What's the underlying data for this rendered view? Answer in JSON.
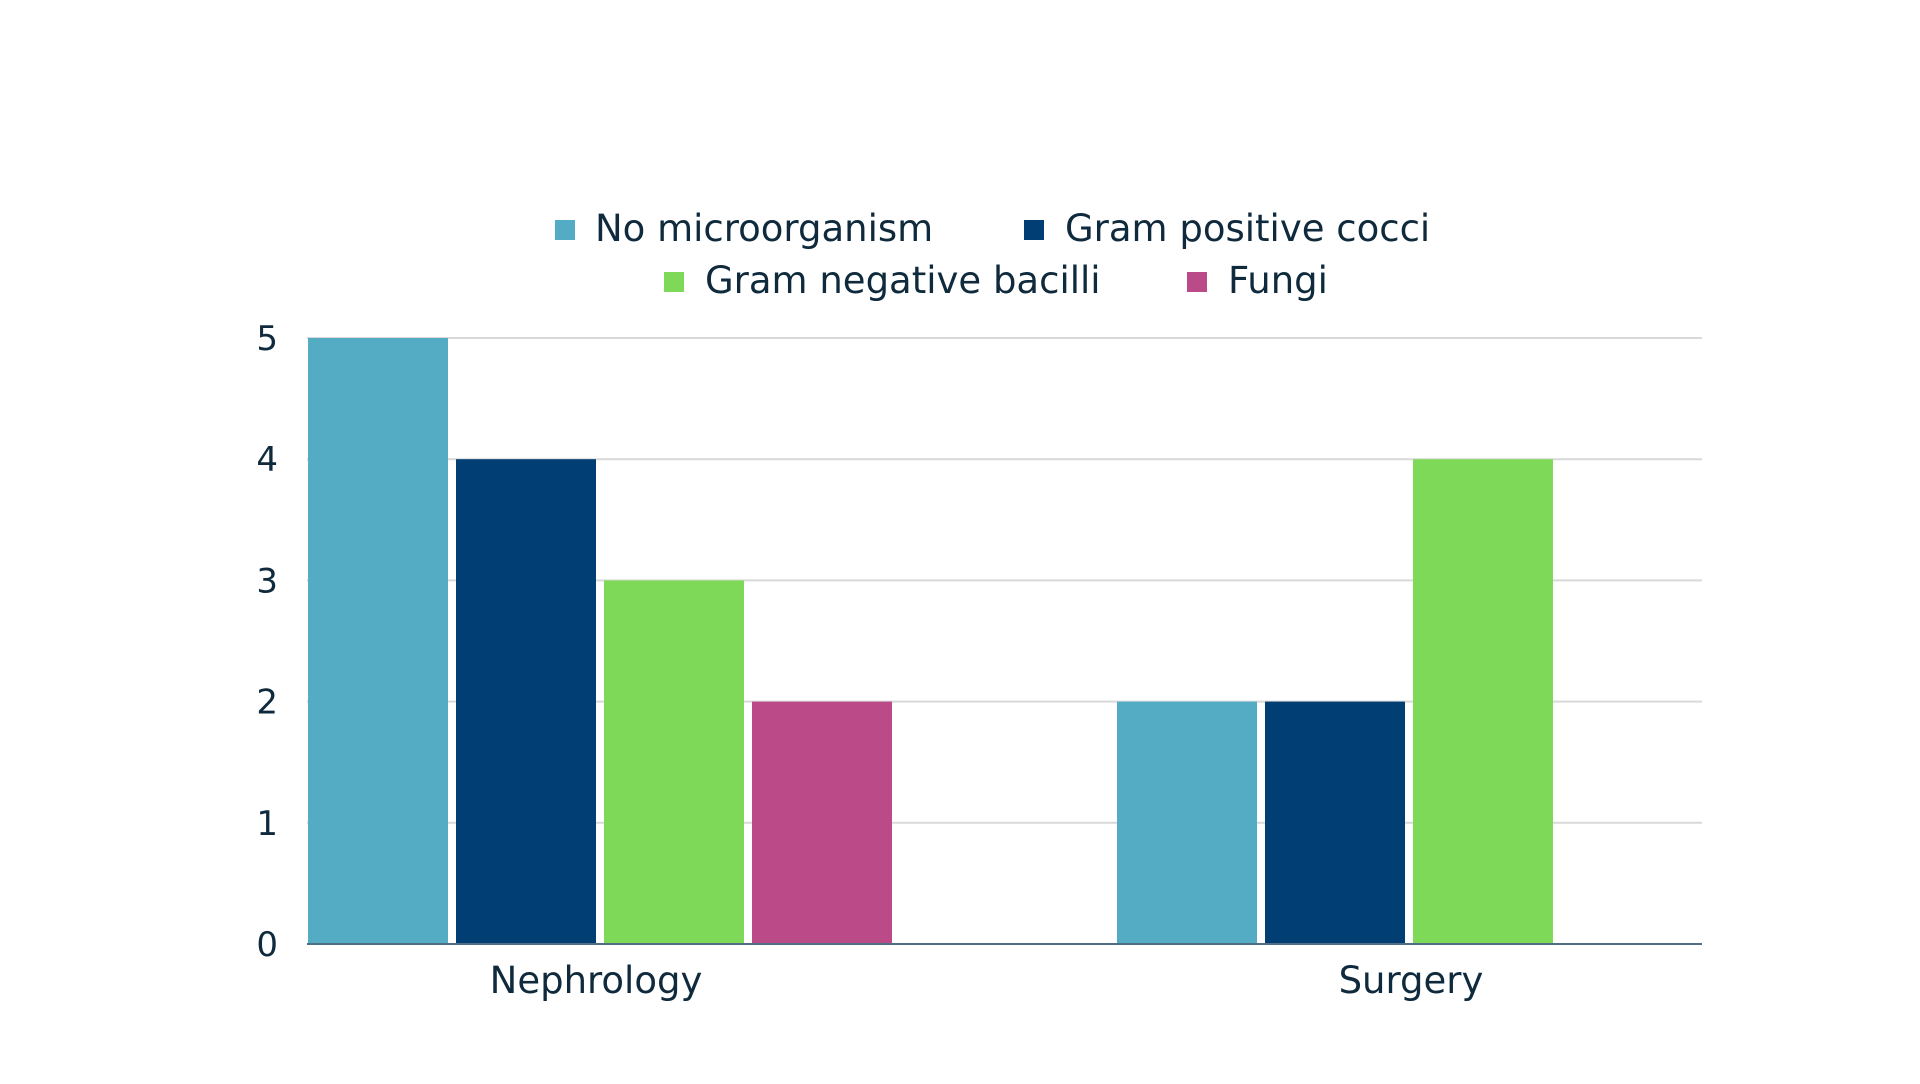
{
  "chart_data": {
    "type": "bar",
    "categories": [
      "Nephrology",
      "Surgery"
    ],
    "series": [
      {
        "name": "No microorganism",
        "values": [
          5,
          2
        ],
        "color": "#53acc3"
      },
      {
        "name": "Gram positive cocci",
        "values": [
          4,
          2
        ],
        "color": "#003e74"
      },
      {
        "name": "Gram negative bacilli",
        "values": [
          3,
          4
        ],
        "color": "#7fd958"
      },
      {
        "name": "Fungi",
        "values": [
          2,
          0
        ],
        "color": "#bb4a88"
      }
    ],
    "yticks": [
      "0",
      "1",
      "2",
      "3",
      "4",
      "5"
    ],
    "ylim": [
      0,
      5
    ],
    "grid": true,
    "legend_position": "top"
  }
}
